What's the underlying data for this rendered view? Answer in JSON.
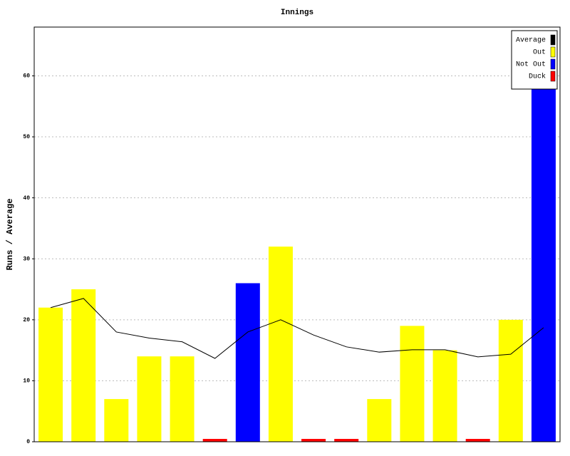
{
  "chart_data": {
    "type": "bar",
    "title": "Innings",
    "y_label": "Runs / Average",
    "categories": [
      null,
      null,
      null,
      null,
      null,
      null,
      null,
      null,
      null,
      null,
      null,
      null,
      null,
      null,
      null,
      null
    ],
    "series": [
      {
        "name": "Average",
        "color": "#000000",
        "type": "line",
        "values": [
          22,
          23.5,
          18,
          17,
          16.4,
          13.67,
          18,
          20,
          17.5,
          15.56,
          14.7,
          15.09,
          15.08,
          13.92,
          14.36,
          18.71
        ]
      },
      {
        "name": "Out",
        "color": "#ffff00",
        "type": "bar",
        "values": [
          22,
          25,
          7,
          14,
          14,
          null,
          null,
          32,
          null,
          null,
          7,
          19,
          15,
          null,
          20,
          null
        ]
      },
      {
        "name": "Not Out",
        "color": "#0000ff",
        "type": "bar",
        "values": [
          null,
          null,
          null,
          null,
          null,
          null,
          26,
          null,
          null,
          null,
          null,
          null,
          null,
          null,
          null,
          61
        ]
      },
      {
        "name": "Duck",
        "color": "#ff0000",
        "type": "bar",
        "values": [
          null,
          null,
          null,
          null,
          null,
          0,
          null,
          null,
          0,
          0,
          null,
          null,
          null,
          0,
          null,
          null
        ]
      }
    ],
    "ylim": [
      0,
      68
    ],
    "yticks": [
      0,
      10,
      20,
      30,
      40,
      50,
      60
    ],
    "grid": true,
    "legend": "top-right"
  }
}
